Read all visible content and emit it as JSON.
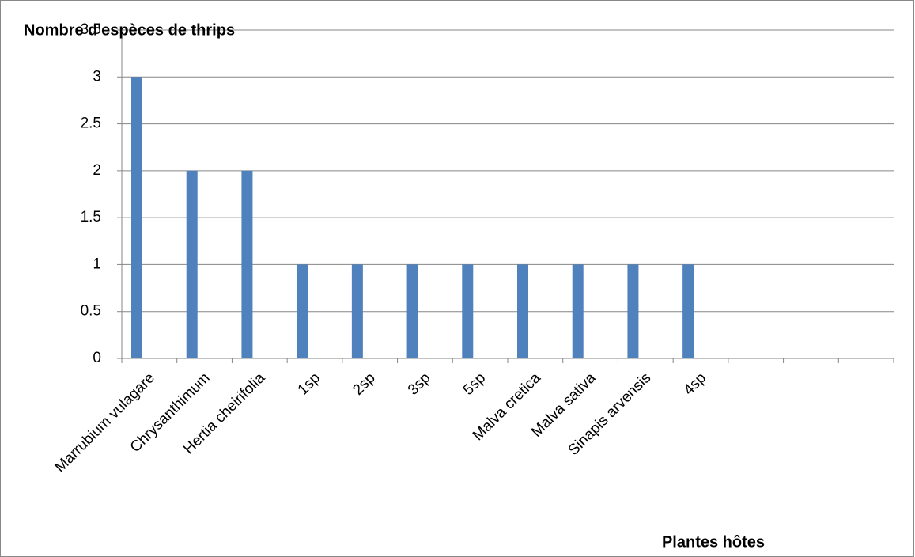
{
  "chart_data": {
    "type": "bar",
    "title": "Nombre d'espèces de thrips",
    "x_label": "Plantes hôtes",
    "categories": [
      "Marrubium vulagare",
      "Chrysanthimum",
      "Hertia cheirifolia",
      "1sp",
      "2sp",
      "3sp",
      "5sp",
      "Malva cretica",
      "Malva sativa",
      "Sinapis arvensis",
      "4sp",
      null,
      null,
      null
    ],
    "values": [
      3,
      2,
      2,
      1,
      1,
      1,
      1,
      1,
      1,
      1,
      1,
      null,
      null,
      null
    ],
    "color": "#4f81bd",
    "ylim": [
      0,
      3.5
    ],
    "yticks": [
      0,
      0.5,
      1,
      1.5,
      2,
      2.5,
      3,
      3.5
    ],
    "grid": true
  }
}
